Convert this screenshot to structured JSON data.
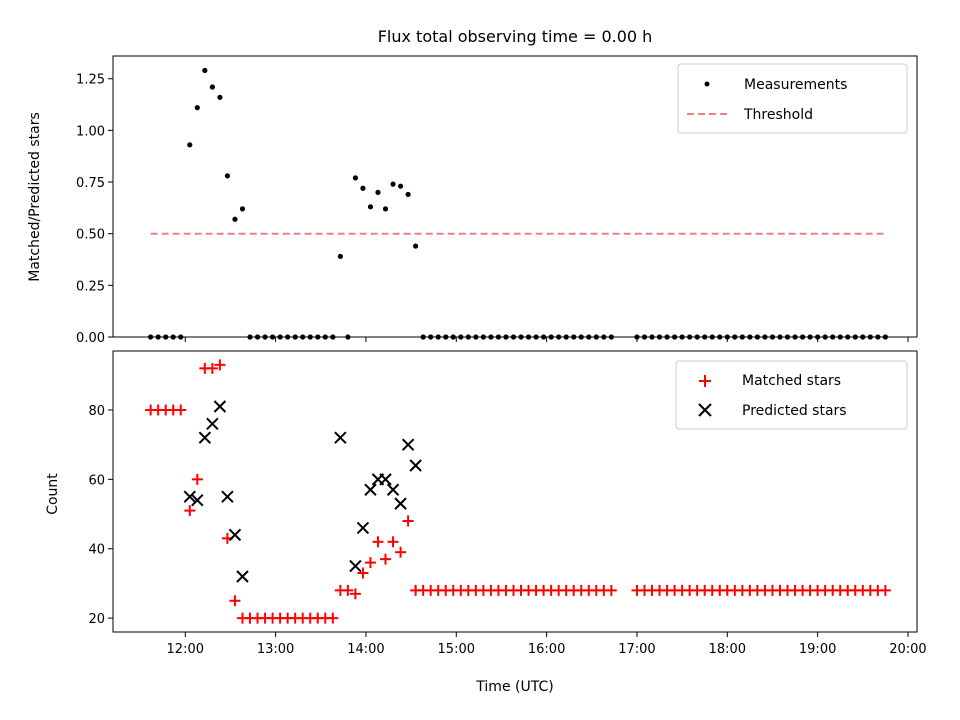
{
  "chart_data": [
    {
      "type": "scatter",
      "title": "Flux total observing time = 0.00 h",
      "xlabel": "",
      "ylabel": "Matched/Predicted stars",
      "xlim_hours": [
        11.2,
        20.1
      ],
      "ylim": [
        0,
        1.36
      ],
      "yticks": [
        "0.00",
        "0.25",
        "0.50",
        "0.75",
        "1.00",
        "1.25"
      ],
      "legend_position": "top-right",
      "series": [
        {
          "name": "Measurements",
          "style": "dot",
          "color": "#000000",
          "points": [
            [
              "11:37",
              0
            ],
            [
              "11:42",
              0
            ],
            [
              "11:47",
              0
            ],
            [
              "11:52",
              0
            ],
            [
              "11:57",
              0
            ],
            [
              "12:03",
              0.93
            ],
            [
              "12:08",
              1.11
            ],
            [
              "12:13",
              1.29
            ],
            [
              "12:18",
              1.21
            ],
            [
              "12:23",
              1.16
            ],
            [
              "12:28",
              0.78
            ],
            [
              "12:33",
              0.57
            ],
            [
              "12:38",
              0.62
            ],
            [
              "12:43",
              0
            ],
            [
              "12:48",
              0
            ],
            [
              "12:53",
              0
            ],
            [
              "12:58",
              0
            ],
            [
              "13:03",
              0
            ],
            [
              "13:08",
              0
            ],
            [
              "13:13",
              0
            ],
            [
              "13:18",
              0
            ],
            [
              "13:23",
              0
            ],
            [
              "13:28",
              0
            ],
            [
              "13:33",
              0
            ],
            [
              "13:38",
              0
            ],
            [
              "13:43",
              0.39
            ],
            [
              "13:48",
              0
            ],
            [
              "13:53",
              0.77
            ],
            [
              "13:58",
              0.72
            ],
            [
              "14:03",
              0.63
            ],
            [
              "14:08",
              0.7
            ],
            [
              "14:13",
              0.62
            ],
            [
              "14:18",
              0.74
            ],
            [
              "14:23",
              0.73
            ],
            [
              "14:28",
              0.69
            ],
            [
              "14:33",
              0.44
            ],
            [
              "14:38",
              0
            ],
            [
              "14:43",
              0
            ],
            [
              "14:48",
              0
            ],
            [
              "14:53",
              0
            ],
            [
              "14:58",
              0
            ],
            [
              "15:03",
              0
            ],
            [
              "15:08",
              0
            ],
            [
              "15:13",
              0
            ],
            [
              "15:18",
              0
            ],
            [
              "15:23",
              0
            ],
            [
              "15:28",
              0
            ],
            [
              "15:33",
              0
            ],
            [
              "15:38",
              0
            ],
            [
              "15:43",
              0
            ],
            [
              "15:48",
              0
            ],
            [
              "15:53",
              0
            ],
            [
              "15:58",
              0
            ],
            [
              "16:03",
              0
            ],
            [
              "16:08",
              0
            ],
            [
              "16:13",
              0
            ],
            [
              "16:18",
              0
            ],
            [
              "16:23",
              0
            ],
            [
              "16:28",
              0
            ],
            [
              "16:33",
              0
            ],
            [
              "16:38",
              0
            ],
            [
              "16:43",
              0
            ],
            [
              "17:00",
              0
            ],
            [
              "17:05",
              0
            ],
            [
              "17:10",
              0
            ],
            [
              "17:15",
              0
            ],
            [
              "17:20",
              0
            ],
            [
              "17:25",
              0
            ],
            [
              "17:30",
              0
            ],
            [
              "17:35",
              0
            ],
            [
              "17:40",
              0
            ],
            [
              "17:45",
              0
            ],
            [
              "17:50",
              0
            ],
            [
              "17:55",
              0
            ],
            [
              "18:00",
              0
            ],
            [
              "18:05",
              0
            ],
            [
              "18:10",
              0
            ],
            [
              "18:15",
              0
            ],
            [
              "18:20",
              0
            ],
            [
              "18:25",
              0
            ],
            [
              "18:30",
              0
            ],
            [
              "18:35",
              0
            ],
            [
              "18:40",
              0
            ],
            [
              "18:45",
              0
            ],
            [
              "18:50",
              0
            ],
            [
              "18:55",
              0
            ],
            [
              "19:00",
              0
            ],
            [
              "19:05",
              0
            ],
            [
              "19:10",
              0
            ],
            [
              "19:15",
              0
            ],
            [
              "19:20",
              0
            ],
            [
              "19:25",
              0
            ],
            [
              "19:30",
              0
            ],
            [
              "19:35",
              0
            ],
            [
              "19:40",
              0
            ],
            [
              "19:45",
              0
            ]
          ]
        },
        {
          "name": "Threshold",
          "style": "dashed-line",
          "color": "#f08080",
          "points": [
            [
              "11:37",
              0.5
            ],
            [
              "19:45",
              0.5
            ]
          ]
        }
      ]
    },
    {
      "type": "scatter",
      "title": "",
      "xlabel": "Time (UTC)",
      "ylabel": "Count",
      "xlim_hours": [
        11.2,
        20.1
      ],
      "ylim": [
        16,
        97
      ],
      "yticks": [
        "20",
        "40",
        "60",
        "80"
      ],
      "xticks": [
        "12:00",
        "13:00",
        "14:00",
        "15:00",
        "16:00",
        "17:00",
        "18:00",
        "19:00",
        "20:00"
      ],
      "legend_position": "top-right",
      "series": [
        {
          "name": "Matched stars",
          "style": "plus",
          "color": "#ff0000",
          "points": [
            [
              "11:37",
              80
            ],
            [
              "11:42",
              80
            ],
            [
              "11:47",
              80
            ],
            [
              "11:52",
              80
            ],
            [
              "11:57",
              80
            ],
            [
              "12:03",
              51
            ],
            [
              "12:08",
              60
            ],
            [
              "12:13",
              92
            ],
            [
              "12:18",
              92
            ],
            [
              "12:23",
              93
            ],
            [
              "12:28",
              43
            ],
            [
              "12:33",
              25
            ],
            [
              "12:38",
              20
            ],
            [
              "12:43",
              20
            ],
            [
              "12:48",
              20
            ],
            [
              "12:53",
              20
            ],
            [
              "12:58",
              20
            ],
            [
              "13:03",
              20
            ],
            [
              "13:08",
              20
            ],
            [
              "13:13",
              20
            ],
            [
              "13:18",
              20
            ],
            [
              "13:23",
              20
            ],
            [
              "13:28",
              20
            ],
            [
              "13:33",
              20
            ],
            [
              "13:38",
              20
            ],
            [
              "13:43",
              28
            ],
            [
              "13:48",
              28
            ],
            [
              "13:53",
              27
            ],
            [
              "13:58",
              33
            ],
            [
              "14:03",
              36
            ],
            [
              "14:08",
              42
            ],
            [
              "14:13",
              37
            ],
            [
              "14:18",
              42
            ],
            [
              "14:23",
              39
            ],
            [
              "14:28",
              48
            ],
            [
              "14:33",
              28
            ],
            [
              "14:38",
              28
            ],
            [
              "14:43",
              28
            ],
            [
              "14:48",
              28
            ],
            [
              "14:53",
              28
            ],
            [
              "14:58",
              28
            ],
            [
              "15:03",
              28
            ],
            [
              "15:08",
              28
            ],
            [
              "15:13",
              28
            ],
            [
              "15:18",
              28
            ],
            [
              "15:23",
              28
            ],
            [
              "15:28",
              28
            ],
            [
              "15:33",
              28
            ],
            [
              "15:38",
              28
            ],
            [
              "15:43",
              28
            ],
            [
              "15:48",
              28
            ],
            [
              "15:53",
              28
            ],
            [
              "15:58",
              28
            ],
            [
              "16:03",
              28
            ],
            [
              "16:08",
              28
            ],
            [
              "16:13",
              28
            ],
            [
              "16:18",
              28
            ],
            [
              "16:23",
              28
            ],
            [
              "16:28",
              28
            ],
            [
              "16:33",
              28
            ],
            [
              "16:38",
              28
            ],
            [
              "16:43",
              28
            ],
            [
              "17:00",
              28
            ],
            [
              "17:05",
              28
            ],
            [
              "17:10",
              28
            ],
            [
              "17:15",
              28
            ],
            [
              "17:20",
              28
            ],
            [
              "17:25",
              28
            ],
            [
              "17:30",
              28
            ],
            [
              "17:35",
              28
            ],
            [
              "17:40",
              28
            ],
            [
              "17:45",
              28
            ],
            [
              "17:50",
              28
            ],
            [
              "17:55",
              28
            ],
            [
              "18:00",
              28
            ],
            [
              "18:05",
              28
            ],
            [
              "18:10",
              28
            ],
            [
              "18:15",
              28
            ],
            [
              "18:20",
              28
            ],
            [
              "18:25",
              28
            ],
            [
              "18:30",
              28
            ],
            [
              "18:35",
              28
            ],
            [
              "18:40",
              28
            ],
            [
              "18:45",
              28
            ],
            [
              "18:50",
              28
            ],
            [
              "18:55",
              28
            ],
            [
              "19:00",
              28
            ],
            [
              "19:05",
              28
            ],
            [
              "19:10",
              28
            ],
            [
              "19:15",
              28
            ],
            [
              "19:20",
              28
            ],
            [
              "19:25",
              28
            ],
            [
              "19:30",
              28
            ],
            [
              "19:35",
              28
            ],
            [
              "19:40",
              28
            ],
            [
              "19:45",
              28
            ]
          ]
        },
        {
          "name": "Predicted stars",
          "style": "x",
          "color": "#000000",
          "points": [
            [
              "12:03",
              55
            ],
            [
              "12:08",
              54
            ],
            [
              "12:13",
              72
            ],
            [
              "12:18",
              76
            ],
            [
              "12:23",
              81
            ],
            [
              "12:28",
              55
            ],
            [
              "12:33",
              44
            ],
            [
              "12:38",
              32
            ],
            [
              "13:43",
              72
            ],
            [
              "13:53",
              35
            ],
            [
              "13:58",
              46
            ],
            [
              "14:03",
              57
            ],
            [
              "14:08",
              60
            ],
            [
              "14:13",
              60
            ],
            [
              "14:18",
              57
            ],
            [
              "14:23",
              53
            ],
            [
              "14:28",
              70
            ],
            [
              "14:33",
              64
            ]
          ]
        }
      ]
    }
  ]
}
